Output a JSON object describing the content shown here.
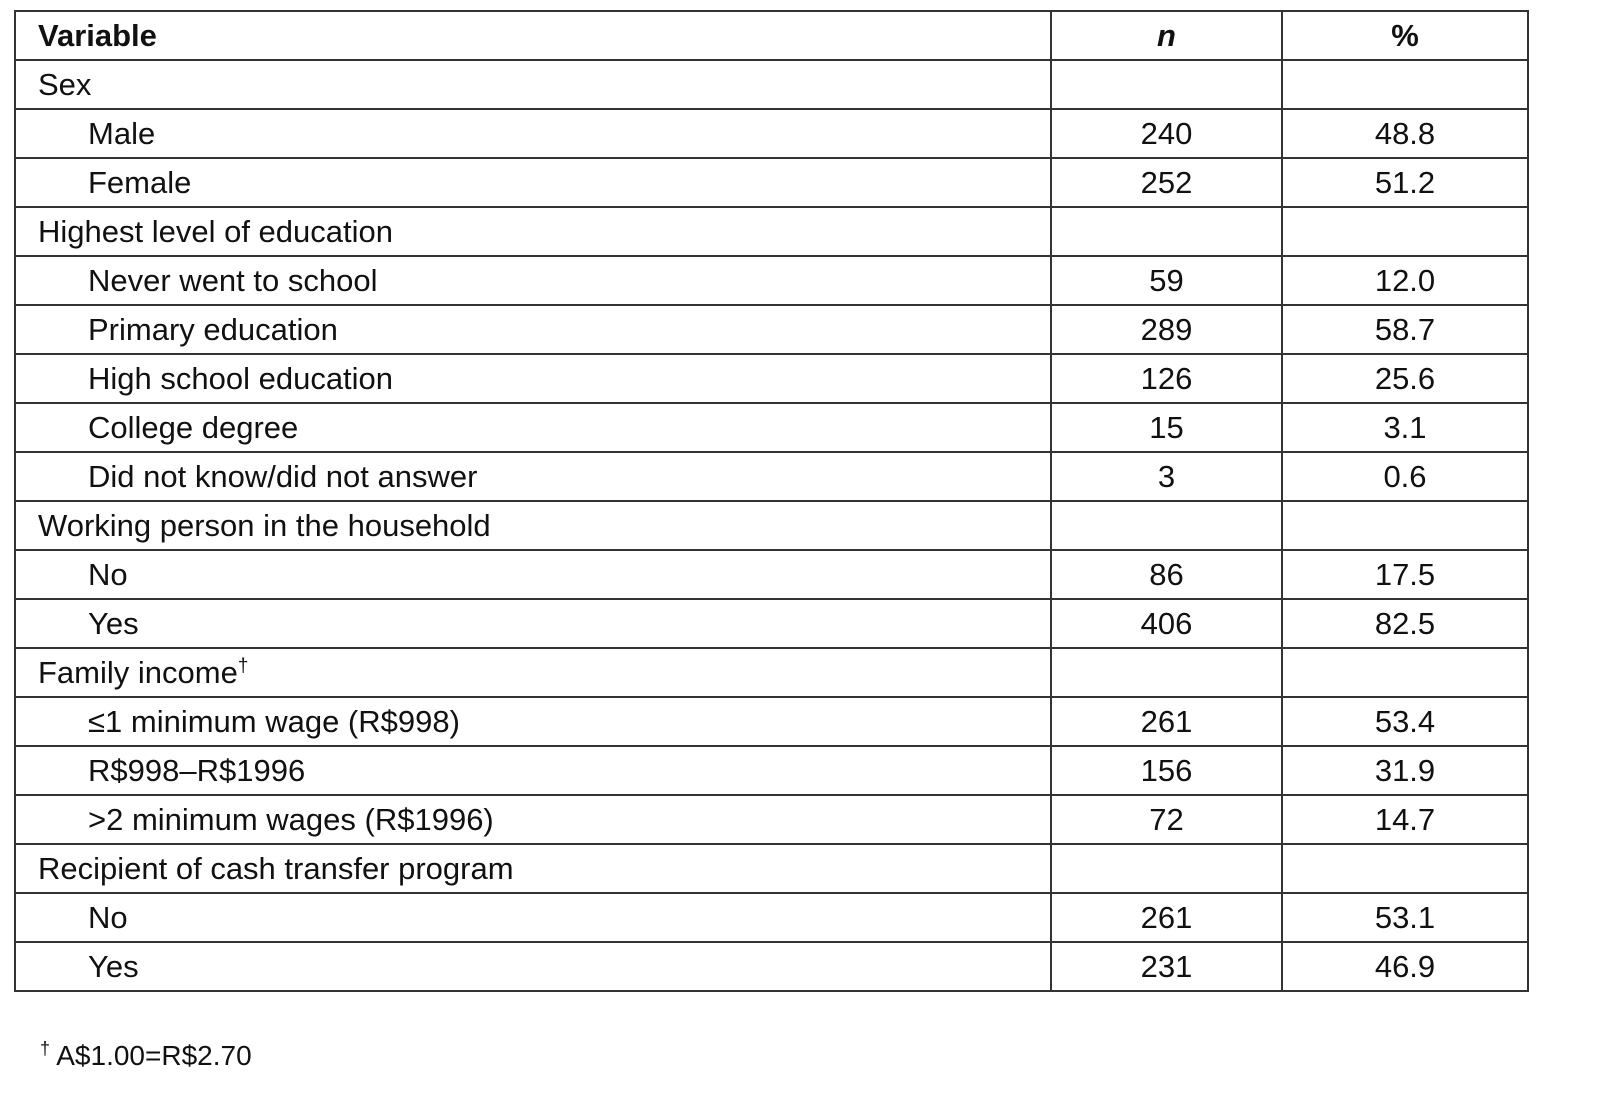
{
  "header": {
    "variable": "Variable",
    "n": "n",
    "percent": "%"
  },
  "rows": [
    {
      "label": "Sex",
      "group": true
    },
    {
      "label": "Male",
      "n": "240",
      "pct": "48.8"
    },
    {
      "label": "Female",
      "n": "252",
      "pct": "51.2"
    },
    {
      "label": "Highest level of education",
      "group": true
    },
    {
      "label": "Never went to school",
      "n": "59",
      "pct": "12.0"
    },
    {
      "label": "Primary education",
      "n": "289",
      "pct": "58.7"
    },
    {
      "label": "High school education",
      "n": "126",
      "pct": "25.6"
    },
    {
      "label": "College degree",
      "n": "15",
      "pct": "3.1"
    },
    {
      "label": "Did not know/did not answer",
      "n": "3",
      "pct": "0.6"
    },
    {
      "label": "Working person in the household",
      "group": true
    },
    {
      "label": "No",
      "n": "86",
      "pct": "17.5"
    },
    {
      "label": "Yes",
      "n": "406",
      "pct": "82.5"
    },
    {
      "label": "Family income",
      "group": true,
      "mark": "†"
    },
    {
      "label": "≤1 minimum wage (R$998)",
      "n": "261",
      "pct": "53.4"
    },
    {
      "label": "R$998–R$1996",
      "n": "156",
      "pct": "31.9"
    },
    {
      "label": ">2 minimum wages (R$1996)",
      "n": "72",
      "pct": "14.7"
    },
    {
      "label": "Recipient of cash transfer program",
      "group": true
    },
    {
      "label": "No",
      "n": "261",
      "pct": "53.1"
    },
    {
      "label": "Yes",
      "n": "231",
      "pct": "46.9"
    }
  ],
  "footnote": {
    "mark": "†",
    "text": " A$1.00=R$2.70"
  }
}
